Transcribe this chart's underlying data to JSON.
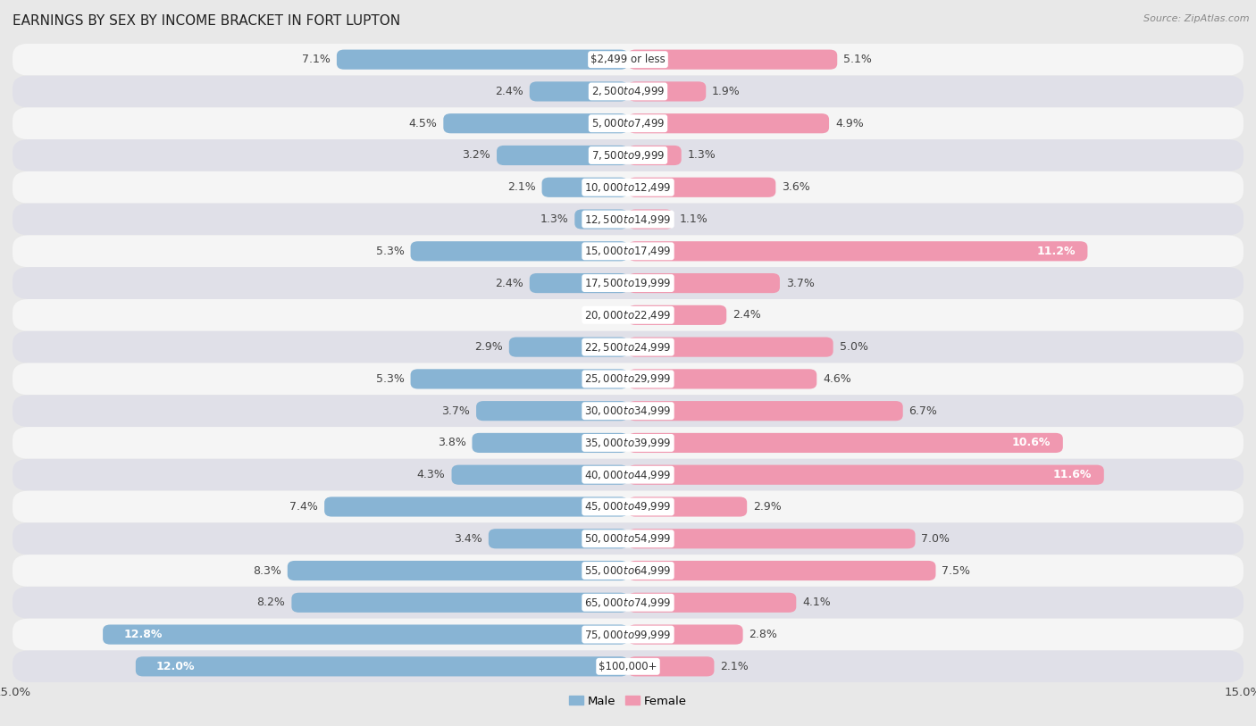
{
  "title": "EARNINGS BY SEX BY INCOME BRACKET IN FORT LUPTON",
  "source": "Source: ZipAtlas.com",
  "categories": [
    "$2,499 or less",
    "$2,500 to $4,999",
    "$5,000 to $7,499",
    "$7,500 to $9,999",
    "$10,000 to $12,499",
    "$12,500 to $14,999",
    "$15,000 to $17,499",
    "$17,500 to $19,999",
    "$20,000 to $22,499",
    "$22,500 to $24,999",
    "$25,000 to $29,999",
    "$30,000 to $34,999",
    "$35,000 to $39,999",
    "$40,000 to $44,999",
    "$45,000 to $49,999",
    "$50,000 to $54,999",
    "$55,000 to $64,999",
    "$65,000 to $74,999",
    "$75,000 to $99,999",
    "$100,000+"
  ],
  "male_values": [
    7.1,
    2.4,
    4.5,
    3.2,
    2.1,
    1.3,
    5.3,
    2.4,
    0.0,
    2.9,
    5.3,
    3.7,
    3.8,
    4.3,
    7.4,
    3.4,
    8.3,
    8.2,
    12.8,
    12.0
  ],
  "female_values": [
    5.1,
    1.9,
    4.9,
    1.3,
    3.6,
    1.1,
    11.2,
    3.7,
    2.4,
    5.0,
    4.6,
    6.7,
    10.6,
    11.6,
    2.9,
    7.0,
    7.5,
    4.1,
    2.8,
    2.1
  ],
  "male_color": "#88b4d4",
  "female_color": "#f098b0",
  "male_label": "Male",
  "female_label": "Female",
  "xlim": 15.0,
  "bg_color": "#e8e8e8",
  "row_white": "#f5f5f5",
  "row_gray": "#e0e0e8",
  "title_fontsize": 11,
  "label_fontsize": 9,
  "tick_fontsize": 9.5,
  "value_label_color_dark": "#444444",
  "value_label_color_light": "#ffffff"
}
